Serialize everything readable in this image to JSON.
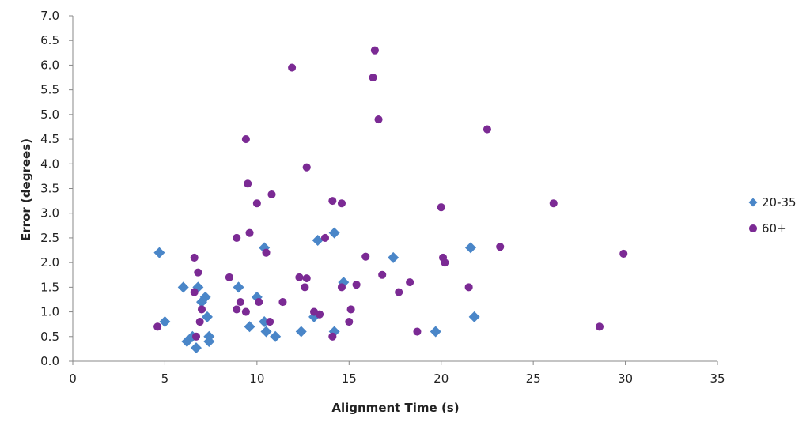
{
  "chart_data": {
    "type": "scatter",
    "xlabel": "Alignment Time (s)",
    "ylabel": "Error (degrees)",
    "xlim": [
      0,
      35
    ],
    "ylim": [
      0,
      7
    ],
    "x_ticks": [
      "0",
      "5",
      "10",
      "15",
      "20",
      "25",
      "30",
      "35"
    ],
    "y_ticks": [
      "0.0",
      "0.5",
      "1.0",
      "1.5",
      "2.0",
      "2.5",
      "3.0",
      "3.5",
      "4.0",
      "4.5",
      "5.0",
      "5.5",
      "6.0",
      "6.5",
      "7.0"
    ],
    "grid": false,
    "legend_position": "right",
    "series": [
      {
        "name": "20-35",
        "marker": "diamond",
        "color": "#4a86c8",
        "points": [
          [
            4.7,
            2.2
          ],
          [
            5.0,
            0.8
          ],
          [
            6.0,
            1.5
          ],
          [
            6.2,
            0.4
          ],
          [
            6.5,
            0.5
          ],
          [
            6.7,
            0.27
          ],
          [
            6.8,
            1.5
          ],
          [
            7.0,
            1.2
          ],
          [
            7.2,
            1.3
          ],
          [
            7.3,
            0.9
          ],
          [
            7.4,
            0.5
          ],
          [
            7.4,
            0.4
          ],
          [
            9.0,
            1.5
          ],
          [
            9.6,
            0.7
          ],
          [
            10.0,
            1.3
          ],
          [
            10.4,
            2.3
          ],
          [
            10.4,
            0.8
          ],
          [
            10.5,
            0.6
          ],
          [
            11.0,
            0.5
          ],
          [
            12.4,
            0.6
          ],
          [
            13.1,
            0.9
          ],
          [
            13.3,
            2.45
          ],
          [
            14.2,
            2.6
          ],
          [
            14.2,
            0.6
          ],
          [
            14.7,
            1.6
          ],
          [
            17.4,
            2.1
          ],
          [
            19.7,
            0.6
          ],
          [
            21.6,
            2.3
          ],
          [
            21.8,
            0.9
          ]
        ]
      },
      {
        "name": "60+",
        "marker": "circle",
        "color": "#7b2a94",
        "points": [
          [
            4.6,
            0.7
          ],
          [
            6.6,
            2.1
          ],
          [
            6.6,
            1.4
          ],
          [
            6.7,
            0.5
          ],
          [
            6.8,
            1.8
          ],
          [
            6.9,
            0.8
          ],
          [
            7.0,
            1.05
          ],
          [
            8.5,
            1.7
          ],
          [
            8.9,
            2.5
          ],
          [
            8.9,
            1.05
          ],
          [
            9.1,
            1.2
          ],
          [
            9.4,
            1.0
          ],
          [
            9.4,
            4.5
          ],
          [
            9.5,
            3.6
          ],
          [
            9.6,
            2.6
          ],
          [
            10.0,
            3.2
          ],
          [
            10.1,
            1.2
          ],
          [
            10.5,
            2.2
          ],
          [
            10.7,
            0.8
          ],
          [
            10.8,
            3.38
          ],
          [
            11.4,
            1.2
          ],
          [
            11.9,
            5.95
          ],
          [
            12.3,
            1.7
          ],
          [
            12.6,
            1.5
          ],
          [
            12.7,
            1.68
          ],
          [
            12.7,
            3.93
          ],
          [
            13.1,
            1.0
          ],
          [
            13.4,
            0.95
          ],
          [
            13.7,
            2.5
          ],
          [
            14.1,
            3.25
          ],
          [
            14.1,
            0.5
          ],
          [
            14.6,
            1.5
          ],
          [
            14.6,
            3.2
          ],
          [
            15.0,
            0.8
          ],
          [
            15.1,
            1.05
          ],
          [
            15.4,
            1.55
          ],
          [
            15.9,
            2.12
          ],
          [
            16.3,
            5.75
          ],
          [
            16.4,
            6.3
          ],
          [
            16.6,
            4.9
          ],
          [
            16.8,
            1.75
          ],
          [
            17.7,
            1.4
          ],
          [
            18.3,
            1.6
          ],
          [
            18.7,
            0.6
          ],
          [
            20.0,
            3.12
          ],
          [
            20.1,
            2.1
          ],
          [
            20.2,
            2.0
          ],
          [
            21.5,
            1.5
          ],
          [
            22.5,
            4.7
          ],
          [
            23.2,
            2.32
          ],
          [
            26.1,
            3.2
          ],
          [
            28.6,
            0.7
          ],
          [
            29.9,
            2.18
          ]
        ]
      }
    ]
  }
}
